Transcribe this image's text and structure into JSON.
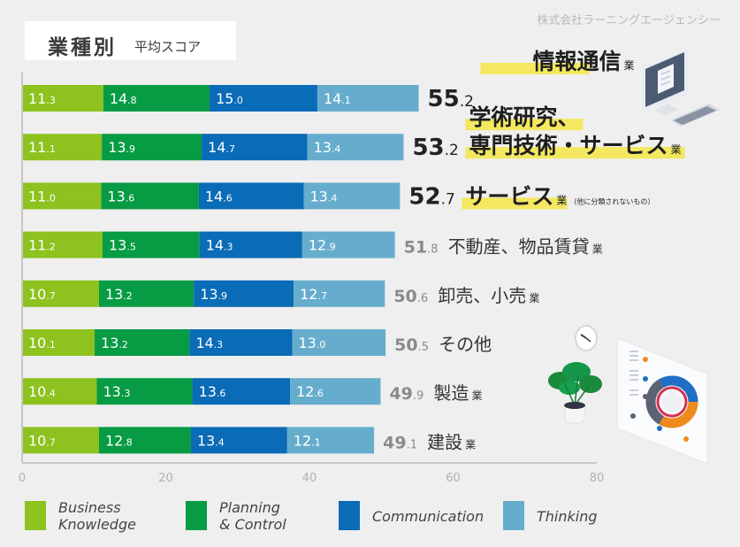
{
  "header": {
    "title_main": "業種別",
    "title_sub": "平均スコア",
    "company": "株式会社ラーニングエージェンシー"
  },
  "colors": {
    "business_knowledge": "#8dc21f",
    "planning_control": "#079b44",
    "communication": "#0a6bb7",
    "thinking": "#66adcd",
    "highlight": "#f3e85f",
    "total_dark": "#222222",
    "total_gray": "#8a8a8a",
    "axis": "#c8c8c8",
    "tick": "#b0b0b0"
  },
  "chart_data": {
    "type": "bar",
    "orientation": "horizontal",
    "stacked": true,
    "title": "業種別 平均スコア",
    "xlabel": "",
    "ylabel": "",
    "xlim": [
      0,
      80
    ],
    "x_ticks": [
      "0",
      "20",
      "40",
      "60",
      "80"
    ],
    "x_tick_values": [
      0,
      20,
      40,
      60,
      80
    ],
    "grid": false,
    "legend_position": "bottom",
    "categories": [
      {
        "name": "情報通信",
        "suffix": "業",
        "note": "",
        "highlight": true
      },
      {
        "name": "学術研究、専門技術・サービス",
        "line1": "学術研究、",
        "line2": "専門技術・サービス",
        "suffix": "業",
        "note": "",
        "highlight": true
      },
      {
        "name": "サービス",
        "suffix": "業",
        "note": "（他に分類されないもの）",
        "highlight": true
      },
      {
        "name": "不動産、物品賃貸",
        "suffix": "業",
        "note": "",
        "highlight": false
      },
      {
        "name": "卸売、小売",
        "suffix": "業",
        "note": "",
        "highlight": false
      },
      {
        "name": "その他",
        "suffix": "",
        "note": "",
        "highlight": false
      },
      {
        "name": "製造",
        "suffix": "業",
        "note": "",
        "highlight": false
      },
      {
        "name": "建設",
        "suffix": "業",
        "note": "",
        "highlight": false
      }
    ],
    "series": [
      {
        "name": "Business Knowledge",
        "legend": "Business\nKnowledge",
        "color_key": "business_knowledge",
        "values": [
          11.3,
          11.1,
          11.0,
          11.2,
          10.7,
          10.1,
          10.4,
          10.7
        ]
      },
      {
        "name": "Planning & Control",
        "legend": "Planning\n& Control",
        "color_key": "planning_control",
        "values": [
          14.8,
          13.9,
          13.6,
          13.5,
          13.2,
          13.2,
          13.3,
          12.8
        ]
      },
      {
        "name": "Communication",
        "legend": "Communication",
        "color_key": "communication",
        "values": [
          15.0,
          14.7,
          14.6,
          14.3,
          13.9,
          14.3,
          13.6,
          13.4
        ]
      },
      {
        "name": "Thinking",
        "legend": "Thinking",
        "color_key": "thinking",
        "values": [
          14.1,
          13.4,
          13.4,
          12.9,
          12.7,
          13.0,
          12.6,
          12.1
        ]
      }
    ],
    "totals": [
      55.2,
      53.2,
      52.7,
      51.8,
      50.6,
      50.5,
      49.9,
      49.1
    ]
  },
  "illustrations": [
    "computer-monitor-keyboard",
    "wall-clock",
    "potted-monstera-plant",
    "dashboard-donut-chart-panel"
  ]
}
